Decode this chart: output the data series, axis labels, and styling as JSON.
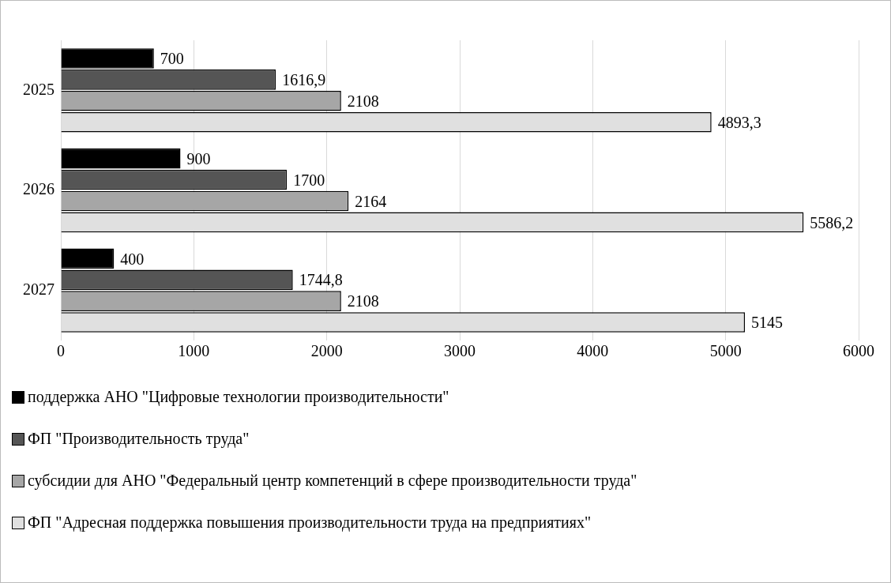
{
  "chart_data": {
    "type": "bar",
    "orientation": "horizontal",
    "categories": [
      "2025",
      "2026",
      "2027"
    ],
    "series": [
      {
        "name": "поддержка АНО \"Цифровые технологии производительности\"",
        "color": "#000000",
        "values": [
          700,
          900,
          400
        ],
        "value_labels": [
          "700",
          "900",
          "400"
        ]
      },
      {
        "name": "ФП \"Производительность труда\"",
        "color": "#555555",
        "values": [
          1616.9,
          1700,
          1744.8
        ],
        "value_labels": [
          "1616,9",
          "1700",
          "1744,8"
        ]
      },
      {
        "name": "субсидии для АНО \"Федеральный центр компетенций в сфере производительности труда\"",
        "color": "#a6a6a6",
        "values": [
          2108,
          2164,
          2108
        ],
        "value_labels": [
          "2108",
          "2164",
          "2108"
        ]
      },
      {
        "name": "ФП \"Адресная поддержка повышения производительности труда на предприятиях\"",
        "color": "#e0e0e0",
        "values": [
          4893.3,
          5586.2,
          5145
        ],
        "value_labels": [
          "4893,3",
          "5586,2",
          "5145"
        ]
      }
    ],
    "xlim": [
      0,
      6000
    ],
    "xticks": [
      0,
      1000,
      2000,
      3000,
      4000,
      5000,
      6000
    ],
    "grid": "x",
    "legend": "bottom"
  }
}
